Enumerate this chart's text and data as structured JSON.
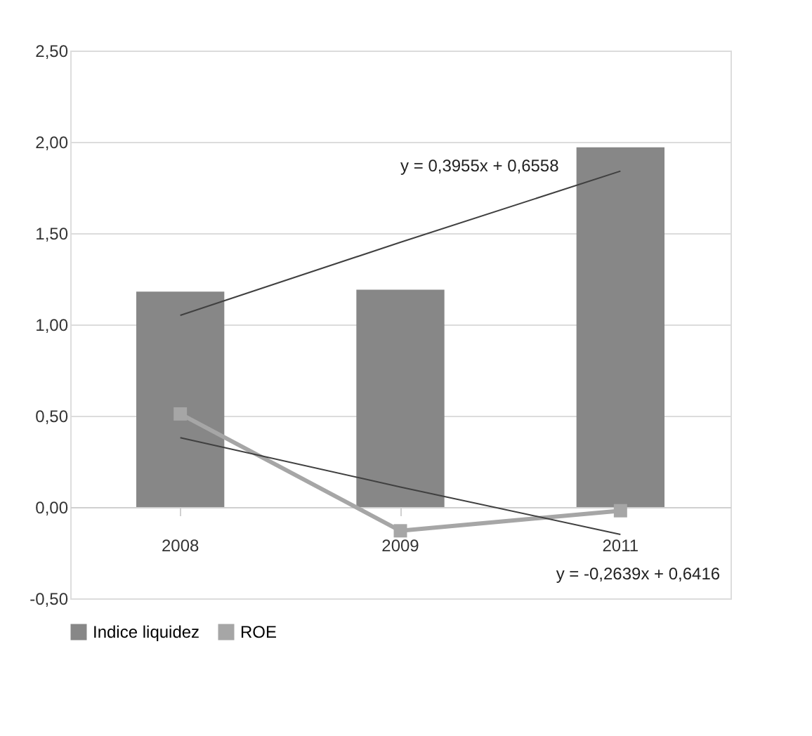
{
  "chart_data": {
    "type": "bar",
    "categories": [
      "2008",
      "2009",
      "2011"
    ],
    "series": [
      {
        "name": "Indice liquidez",
        "color": "#878787",
        "values": [
          1.18,
          1.19,
          1.97
        ]
      },
      {
        "name": "ROE",
        "type": "line",
        "color": "#a6a6a6",
        "marker": "square",
        "values": [
          0.51,
          -0.13,
          -0.02
        ]
      },
      {
        "type": "line",
        "color": "#404040",
        "marker": "none",
        "values": [
          1.05,
          1.45,
          1.84
        ]
      },
      {
        "type": "line",
        "color": "#404040",
        "marker": "none",
        "values": [
          0.38,
          0.11,
          -0.15
        ]
      }
    ],
    "ylim": [
      -0.5,
      2.5
    ],
    "yticks": [
      {
        "value": -0.5,
        "label": "-0,50"
      },
      {
        "value": 0,
        "label": "0,00"
      },
      {
        "value": 0.5,
        "label": "0,50"
      },
      {
        "value": 1,
        "label": "1,00"
      },
      {
        "value": 1.5,
        "label": "1,50"
      },
      {
        "value": 2,
        "label": "2,00"
      },
      {
        "value": 2.5,
        "label": "2,50"
      }
    ],
    "annotations": [
      "y = 0,3955x + 0,6558",
      "y = -0,2639x + 0,6416"
    ],
    "grid": "y",
    "legend": "bottom"
  }
}
